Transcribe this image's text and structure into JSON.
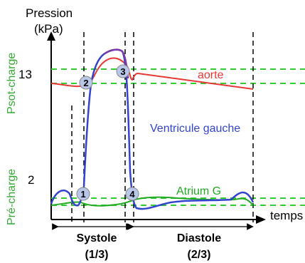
{
  "axes": {
    "y_label_line1": "Pression",
    "y_label_line2": "(kPa)",
    "x_label": "temps",
    "y_tick_high": "13",
    "y_tick_low": "2"
  },
  "side_labels": {
    "top": "Psot-charge",
    "bottom": "Pré-charge"
  },
  "curves": {
    "aorte": "aorte",
    "ventricule": "Ventricule gauche",
    "atrium": "Atrium G"
  },
  "points": [
    "1",
    "2",
    "3",
    "4"
  ],
  "phases": {
    "systole": "Systole",
    "systole_fraction": "(1/3)",
    "diastole": "Diastole",
    "diastole_fraction": "(2/3)"
  },
  "colors": {
    "aorte": "#e53935",
    "ventricule": "#3344cc",
    "atrium": "#22aa22",
    "systole_peak": "#7a3aa8",
    "guide": "#33cc33",
    "marker_fill": "#b8c6e8"
  }
}
